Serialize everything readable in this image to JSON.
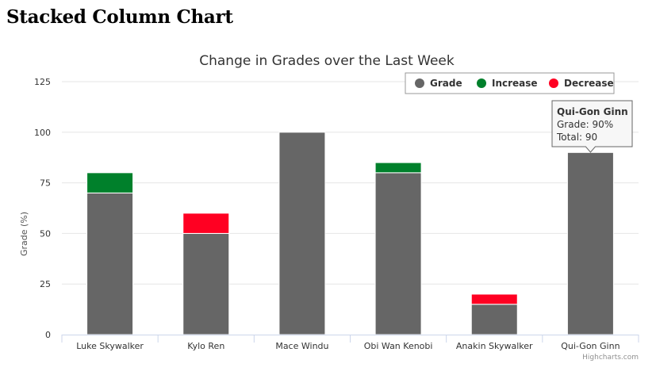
{
  "page": {
    "heading": "Stacked Column Chart"
  },
  "chart_data": {
    "type": "bar",
    "stacked": true,
    "title": "Change in Grades over the Last Week",
    "xlabel": "",
    "ylabel": "Grade (%)",
    "ylim": [
      0,
      125
    ],
    "yticks": [
      0,
      25,
      50,
      75,
      100,
      125
    ],
    "grid": true,
    "legend_position": "top-right",
    "categories": [
      "Luke Skywalker",
      "Kylo Ren",
      "Mace Windu",
      "Obi Wan Kenobi",
      "Anakin Skywalker",
      "Qui-Gon Ginn"
    ],
    "series": [
      {
        "name": "Grade",
        "color": "#666666",
        "values": [
          70,
          50,
          100,
          80,
          15,
          90
        ]
      },
      {
        "name": "Increase",
        "color": "#00802b",
        "values": [
          10,
          0,
          0,
          5,
          0,
          0
        ]
      },
      {
        "name": "Decrease",
        "color": "#ff0022",
        "values": [
          0,
          10,
          0,
          0,
          5,
          0
        ]
      }
    ],
    "tooltip": {
      "category_index": 5,
      "title": "Qui-Gon Ginn",
      "lines": [
        "Grade: 90%",
        "Total: 90"
      ]
    },
    "credits": "Highcharts.com"
  }
}
